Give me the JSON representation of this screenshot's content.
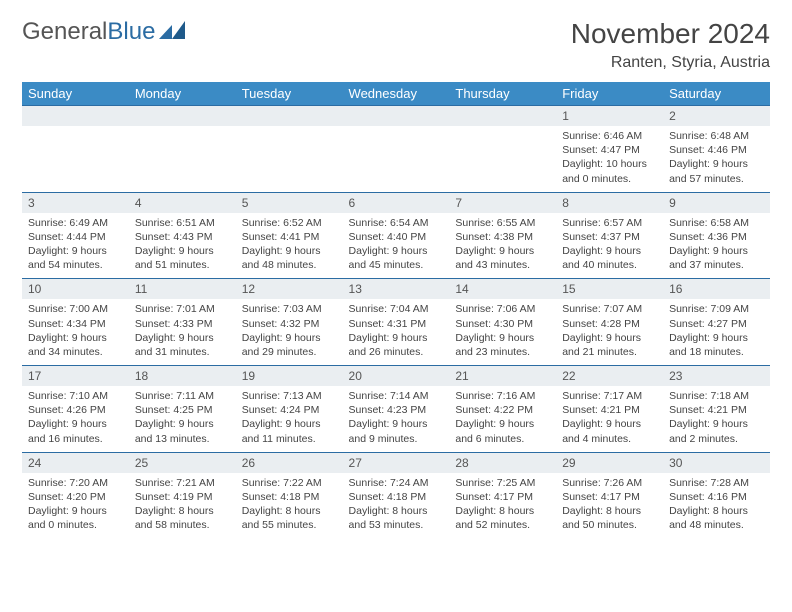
{
  "logo": {
    "text_gray": "General",
    "text_blue": "Blue"
  },
  "title": "November 2024",
  "location": "Ranten, Styria, Austria",
  "colors": {
    "header_bg": "#3b8bc5",
    "header_fg": "#ffffff",
    "numrow_bg": "#eaeef1",
    "numrow_border": "#2b6ca3",
    "text": "#444444",
    "logo_blue": "#2b6ca3",
    "logo_gray": "#555555"
  },
  "day_headers": [
    "Sunday",
    "Monday",
    "Tuesday",
    "Wednesday",
    "Thursday",
    "Friday",
    "Saturday"
  ],
  "weeks": [
    {
      "nums": [
        "",
        "",
        "",
        "",
        "",
        "1",
        "2"
      ],
      "cells": [
        {},
        {},
        {},
        {},
        {},
        {
          "sr": "6:46 AM",
          "ss": "4:47 PM",
          "dl": "10 hours and 0 minutes."
        },
        {
          "sr": "6:48 AM",
          "ss": "4:46 PM",
          "dl": "9 hours and 57 minutes."
        }
      ]
    },
    {
      "nums": [
        "3",
        "4",
        "5",
        "6",
        "7",
        "8",
        "9"
      ],
      "cells": [
        {
          "sr": "6:49 AM",
          "ss": "4:44 PM",
          "dl": "9 hours and 54 minutes."
        },
        {
          "sr": "6:51 AM",
          "ss": "4:43 PM",
          "dl": "9 hours and 51 minutes."
        },
        {
          "sr": "6:52 AM",
          "ss": "4:41 PM",
          "dl": "9 hours and 48 minutes."
        },
        {
          "sr": "6:54 AM",
          "ss": "4:40 PM",
          "dl": "9 hours and 45 minutes."
        },
        {
          "sr": "6:55 AM",
          "ss": "4:38 PM",
          "dl": "9 hours and 43 minutes."
        },
        {
          "sr": "6:57 AM",
          "ss": "4:37 PM",
          "dl": "9 hours and 40 minutes."
        },
        {
          "sr": "6:58 AM",
          "ss": "4:36 PM",
          "dl": "9 hours and 37 minutes."
        }
      ]
    },
    {
      "nums": [
        "10",
        "11",
        "12",
        "13",
        "14",
        "15",
        "16"
      ],
      "cells": [
        {
          "sr": "7:00 AM",
          "ss": "4:34 PM",
          "dl": "9 hours and 34 minutes."
        },
        {
          "sr": "7:01 AM",
          "ss": "4:33 PM",
          "dl": "9 hours and 31 minutes."
        },
        {
          "sr": "7:03 AM",
          "ss": "4:32 PM",
          "dl": "9 hours and 29 minutes."
        },
        {
          "sr": "7:04 AM",
          "ss": "4:31 PM",
          "dl": "9 hours and 26 minutes."
        },
        {
          "sr": "7:06 AM",
          "ss": "4:30 PM",
          "dl": "9 hours and 23 minutes."
        },
        {
          "sr": "7:07 AM",
          "ss": "4:28 PM",
          "dl": "9 hours and 21 minutes."
        },
        {
          "sr": "7:09 AM",
          "ss": "4:27 PM",
          "dl": "9 hours and 18 minutes."
        }
      ]
    },
    {
      "nums": [
        "17",
        "18",
        "19",
        "20",
        "21",
        "22",
        "23"
      ],
      "cells": [
        {
          "sr": "7:10 AM",
          "ss": "4:26 PM",
          "dl": "9 hours and 16 minutes."
        },
        {
          "sr": "7:11 AM",
          "ss": "4:25 PM",
          "dl": "9 hours and 13 minutes."
        },
        {
          "sr": "7:13 AM",
          "ss": "4:24 PM",
          "dl": "9 hours and 11 minutes."
        },
        {
          "sr": "7:14 AM",
          "ss": "4:23 PM",
          "dl": "9 hours and 9 minutes."
        },
        {
          "sr": "7:16 AM",
          "ss": "4:22 PM",
          "dl": "9 hours and 6 minutes."
        },
        {
          "sr": "7:17 AM",
          "ss": "4:21 PM",
          "dl": "9 hours and 4 minutes."
        },
        {
          "sr": "7:18 AM",
          "ss": "4:21 PM",
          "dl": "9 hours and 2 minutes."
        }
      ]
    },
    {
      "nums": [
        "24",
        "25",
        "26",
        "27",
        "28",
        "29",
        "30"
      ],
      "cells": [
        {
          "sr": "7:20 AM",
          "ss": "4:20 PM",
          "dl": "9 hours and 0 minutes."
        },
        {
          "sr": "7:21 AM",
          "ss": "4:19 PM",
          "dl": "8 hours and 58 minutes."
        },
        {
          "sr": "7:22 AM",
          "ss": "4:18 PM",
          "dl": "8 hours and 55 minutes."
        },
        {
          "sr": "7:24 AM",
          "ss": "4:18 PM",
          "dl": "8 hours and 53 minutes."
        },
        {
          "sr": "7:25 AM",
          "ss": "4:17 PM",
          "dl": "8 hours and 52 minutes."
        },
        {
          "sr": "7:26 AM",
          "ss": "4:17 PM",
          "dl": "8 hours and 50 minutes."
        },
        {
          "sr": "7:28 AM",
          "ss": "4:16 PM",
          "dl": "8 hours and 48 minutes."
        }
      ]
    }
  ],
  "labels": {
    "sunrise": "Sunrise:",
    "sunset": "Sunset:",
    "daylight": "Daylight:"
  }
}
